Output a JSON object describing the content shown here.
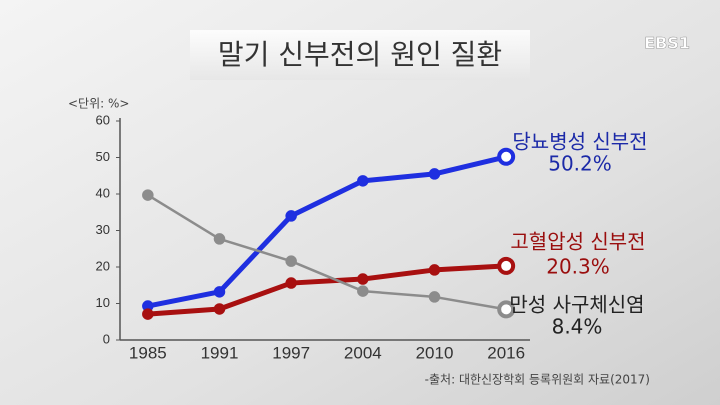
{
  "logo": "EBS1",
  "chart_data": {
    "type": "line",
    "title": "말기 신부전의 원인 질환",
    "unit_label": "<단위: %>",
    "source": "-출처: 대한신장학회 등록위원회 자료(2017)",
    "categories": [
      "1985",
      "1991",
      "1997",
      "2004",
      "2010",
      "2016"
    ],
    "ylim": [
      0,
      60
    ],
    "yticks": [
      0,
      10,
      20,
      30,
      40,
      50,
      60
    ],
    "grid": false,
    "series": [
      {
        "name": "당뇨병성 신부전",
        "color": "#1f2fe0",
        "label_color": "#1c2aa8",
        "values": [
          9.3,
          13.2,
          34,
          43.6,
          45.5,
          50.2
        ],
        "value_labels": [
          null,
          null,
          null,
          null,
          null,
          "50.2%"
        ]
      },
      {
        "name": "고혈압성 신부전",
        "color": "#a81010",
        "label_color": "#9a0e0e",
        "values": [
          7.1,
          8.5,
          15.6,
          16.7,
          19.2,
          20.3
        ],
        "value_labels": [
          null,
          null,
          null,
          null,
          null,
          "20.3%"
        ]
      },
      {
        "name": "만성 사구체신염",
        "color": "#8c8c8c",
        "label_color": "#222222",
        "values": [
          39.7,
          27.7,
          21.6,
          13.4,
          11.8,
          8.4
        ],
        "value_labels": [
          null,
          null,
          null,
          null,
          null,
          "8.4%"
        ]
      }
    ]
  }
}
